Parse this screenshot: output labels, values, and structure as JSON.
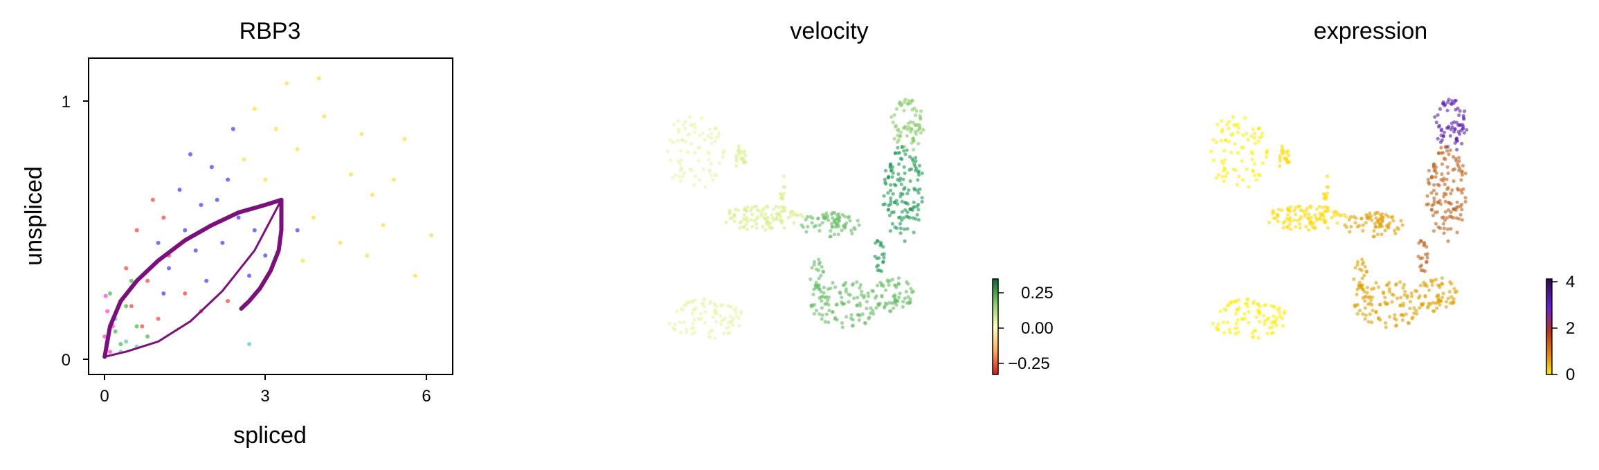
{
  "chart_data": [
    {
      "type": "scatter",
      "title": "RBP3",
      "xlabel": "spliced",
      "ylabel": "unspliced",
      "xlim": [
        -0.3,
        6.5
      ],
      "ylim": [
        -0.07,
        1.18
      ],
      "xticks": [
        "0",
        "3",
        "6"
      ],
      "yticks": [
        "0",
        "1"
      ],
      "grid": false,
      "series": [
        {
          "color": "#ffd400",
          "points": [
            [
              3.2,
              0.9
            ],
            [
              3.6,
              0.82
            ],
            [
              4.1,
              0.95
            ],
            [
              4.6,
              0.72
            ],
            [
              5.0,
              0.64
            ],
            [
              3.9,
              0.55
            ],
            [
              4.4,
              0.45
            ],
            [
              5.4,
              0.7
            ],
            [
              5.8,
              0.32
            ],
            [
              6.1,
              0.48
            ],
            [
              3.4,
              1.08
            ],
            [
              4.0,
              1.1
            ],
            [
              2.8,
              0.98
            ],
            [
              4.8,
              0.88
            ],
            [
              5.2,
              0.52
            ],
            [
              3.0,
              0.7
            ],
            [
              2.6,
              0.78
            ],
            [
              3.7,
              0.38
            ],
            [
              4.9,
              0.4
            ],
            [
              5.6,
              0.86
            ]
          ]
        },
        {
          "color": "#0000ff",
          "points": [
            [
              1.5,
              0.5
            ],
            [
              1.8,
              0.6
            ],
            [
              2.0,
              0.75
            ],
            [
              2.2,
              0.45
            ],
            [
              2.5,
              0.55
            ],
            [
              1.2,
              0.35
            ],
            [
              1.0,
              0.45
            ],
            [
              2.8,
              0.5
            ],
            [
              3.0,
              0.4
            ],
            [
              1.6,
              0.8
            ],
            [
              2.4,
              0.9
            ],
            [
              1.9,
              0.3
            ],
            [
              3.3,
              0.6
            ],
            [
              2.1,
              0.62
            ],
            [
              1.4,
              0.66
            ],
            [
              2.7,
              0.32
            ],
            [
              3.6,
              0.5
            ],
            [
              1.1,
              0.25
            ],
            [
              2.3,
              0.7
            ],
            [
              1.7,
              0.42
            ]
          ]
        },
        {
          "color": "#ff0000",
          "points": [
            [
              0.5,
              0.2
            ],
            [
              0.8,
              0.3
            ],
            [
              1.0,
              0.15
            ],
            [
              1.2,
              0.4
            ],
            [
              0.6,
              0.5
            ],
            [
              1.5,
              0.25
            ],
            [
              0.9,
              0.62
            ],
            [
              0.4,
              0.35
            ],
            [
              1.8,
              0.18
            ],
            [
              2.3,
              0.22
            ],
            [
              0.7,
              0.12
            ],
            [
              1.1,
              0.55
            ]
          ]
        },
        {
          "color": "#00aa00",
          "points": [
            [
              0.2,
              0.1
            ],
            [
              0.4,
              0.2
            ],
            [
              0.3,
              0.05
            ],
            [
              0.6,
              0.12
            ],
            [
              0.1,
              0.25
            ],
            [
              0.5,
              0.3
            ],
            [
              0.8,
              0.08
            ]
          ]
        },
        {
          "color": "#ff00cc",
          "points": [
            [
              0.0,
              0.08
            ],
            [
              0.05,
              0.18
            ],
            [
              0.1,
              0.02
            ],
            [
              0.02,
              0.24
            ],
            [
              0.15,
              0.12
            ]
          ]
        },
        {
          "color": "#20b2aa",
          "points": [
            [
              0.3,
              0.02
            ],
            [
              0.4,
              0.06
            ],
            [
              0.2,
              0.15
            ],
            [
              0.6,
              0.04
            ],
            [
              2.7,
              0.05
            ]
          ]
        }
      ],
      "fit_curve": {
        "color": "#7b0f7b",
        "upper": [
          [
            0,
            0
          ],
          [
            0.1,
            0.12
          ],
          [
            0.3,
            0.22
          ],
          [
            0.6,
            0.3
          ],
          [
            1.0,
            0.38
          ],
          [
            1.5,
            0.46
          ],
          [
            2.0,
            0.52
          ],
          [
            2.5,
            0.57
          ],
          [
            3.0,
            0.6
          ],
          [
            3.3,
            0.62
          ]
        ],
        "lower": [
          [
            3.3,
            0.62
          ],
          [
            3.3,
            0.5
          ],
          [
            3.25,
            0.42
          ],
          [
            3.1,
            0.34
          ],
          [
            2.9,
            0.27
          ],
          [
            2.7,
            0.22
          ],
          [
            2.55,
            0.19
          ]
        ],
        "inner": [
          [
            0,
            0
          ],
          [
            0.4,
            0.02
          ],
          [
            1.0,
            0.06
          ],
          [
            1.6,
            0.14
          ],
          [
            2.2,
            0.26
          ],
          [
            2.8,
            0.42
          ],
          [
            3.3,
            0.62
          ]
        ]
      }
    },
    {
      "type": "scatter",
      "title": "velocity",
      "colorbar": {
        "ticks": [
          "0.25",
          "0.00",
          "−0.25"
        ],
        "colors": [
          "#006837",
          "#86cb66",
          "#ffffbf",
          "#fdae61",
          "#d7191c"
        ]
      },
      "grid": false
    },
    {
      "type": "scatter",
      "title": "expression",
      "colorbar": {
        "ticks": [
          "4",
          "2",
          "0"
        ],
        "colors": [
          "#2e0a4a",
          "#6a1fd6",
          "#b8331a",
          "#e48a00",
          "#ffe600"
        ]
      },
      "grid": false
    }
  ]
}
